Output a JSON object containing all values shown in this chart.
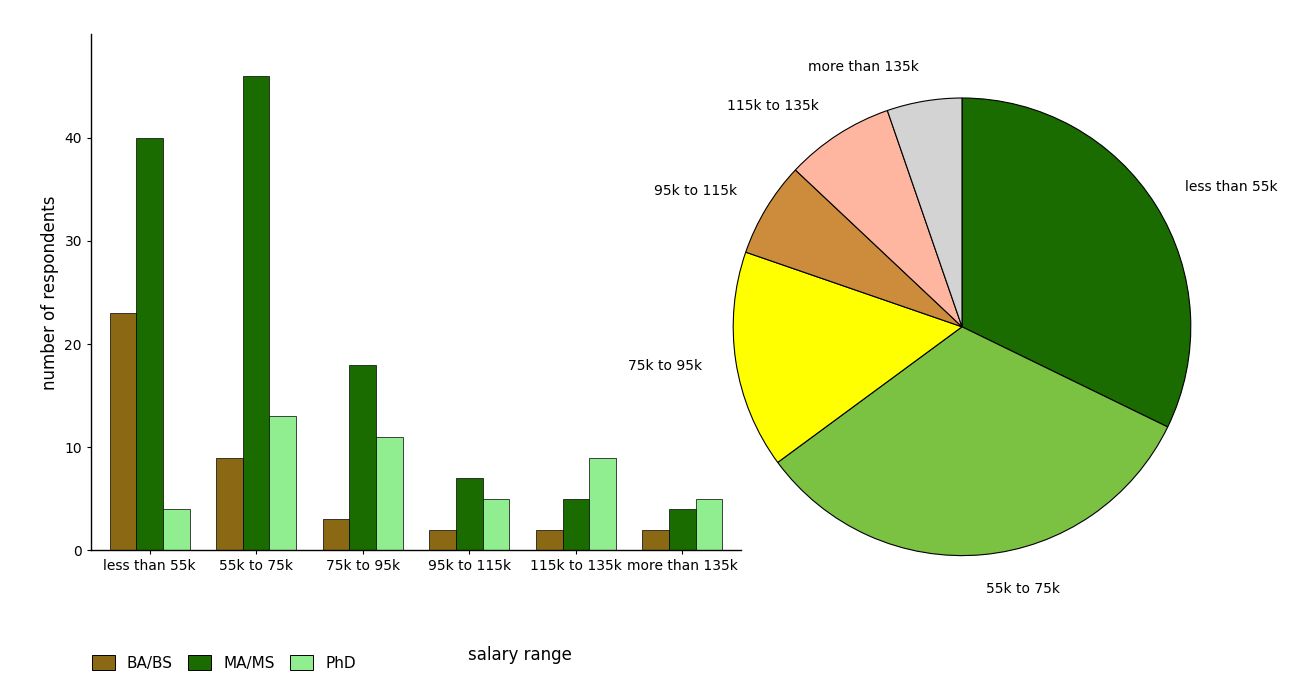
{
  "categories": [
    "less than 55k",
    "55k to 75k",
    "75k to 95k",
    "95k to 115k",
    "115k to 135k",
    "more than 135k"
  ],
  "bar_data": {
    "BA/BS": [
      23,
      9,
      3,
      2,
      2,
      2
    ],
    "MA/MS": [
      40,
      46,
      18,
      7,
      5,
      4
    ],
    "PhD": [
      4,
      13,
      11,
      5,
      9,
      5
    ]
  },
  "bar_colors": {
    "BA/BS": "#8B6914",
    "MA/MS": "#1A6B00",
    "PhD": "#90EE90"
  },
  "pie_values": [
    67,
    68,
    32,
    14,
    16,
    11
  ],
  "pie_labels": [
    "less than 55k",
    "55k to 75k",
    "75k to 95k",
    "95k to 115k",
    "115k to 135k",
    "more than 135k"
  ],
  "pie_colors": [
    "#1A6B00",
    "#7BC142",
    "#FFFF00",
    "#CD8B3C",
    "#FFB6A0",
    "#D3D3D3"
  ],
  "ylabel": "number of respondents",
  "xlabel": "salary range",
  "ylim": [
    0,
    50
  ],
  "yticks": [
    0,
    10,
    20,
    30,
    40
  ],
  "bar_width": 0.25,
  "legend_labels": [
    "BA/BS",
    "MA/MS",
    "PhD"
  ],
  "background_color": "#FFFFFF"
}
